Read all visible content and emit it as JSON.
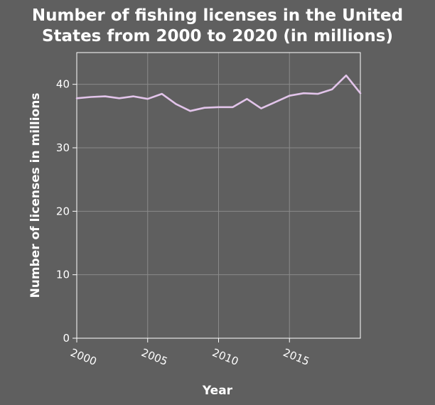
{
  "chart_data": {
    "type": "line",
    "title_lines": [
      "Number of fishing licenses in the United",
      "States from 2000 to 2020 (in millions)"
    ],
    "xlabel": "Year",
    "ylabel": "Number of licenses in millions",
    "xlim": [
      2000,
      2020
    ],
    "ylim": [
      0,
      45
    ],
    "xticks": [
      2000,
      2005,
      2010,
      2015
    ],
    "xtick_labels": [
      "2000",
      "2005",
      "2010",
      "2015"
    ],
    "yticks": [
      0,
      10,
      20,
      30,
      40
    ],
    "ytick_labels": [
      "0",
      "10",
      "20",
      "30",
      "40"
    ],
    "grid": true,
    "line_color": "#e2c4ea",
    "series": [
      {
        "x": [
          2000,
          2001,
          2002,
          2003,
          2004,
          2005,
          2006,
          2007,
          2008,
          2009,
          2010,
          2011,
          2012,
          2013,
          2014,
          2015,
          2016,
          2017,
          2018,
          2019,
          2020
        ],
        "y": [
          37.8,
          38.0,
          38.1,
          37.8,
          38.1,
          37.7,
          38.5,
          36.9,
          35.8,
          36.3,
          36.4,
          36.4,
          37.7,
          36.2,
          37.2,
          38.2,
          38.6,
          38.5,
          39.2,
          41.4,
          38.6
        ]
      }
    ]
  }
}
